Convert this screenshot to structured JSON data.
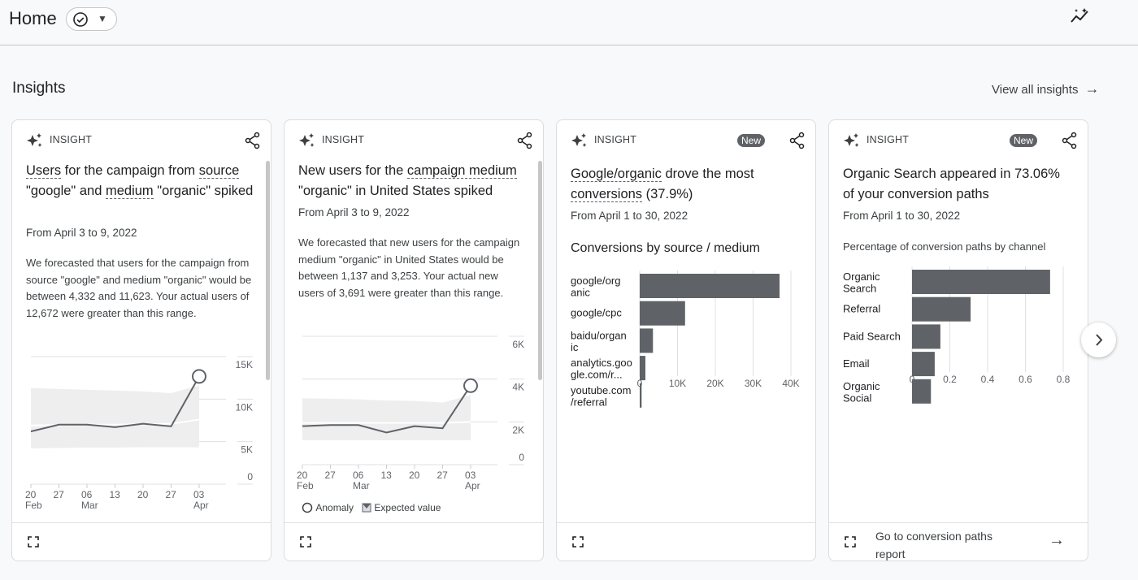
{
  "header": {
    "title": "Home",
    "status_icon": "check-circle-icon",
    "dropdown_icon": "caret-down-icon",
    "right_icon": "insights-sparkline-icon"
  },
  "insights": {
    "title": "Insights",
    "view_all": "View all insights",
    "view_all_icon": "arrow-right-icon"
  },
  "cards": [
    {
      "label": "INSIGHT",
      "title": [
        {
          "t": "Users",
          "u": true
        },
        {
          "t": " for the campaign from "
        },
        {
          "t": "source",
          "u": true
        },
        {
          "t": " \"google\" and "
        },
        {
          "t": "medium",
          "u": true
        },
        {
          "t": " \"organic\" spiked"
        }
      ],
      "date": "From April 3 to 9, 2022",
      "description": "We forecasted that users for the campaign from source \"google\" and medium \"organic\" would be between 4,332 and 11,623. Your actual users of 12,672 were greater than this range."
    },
    {
      "label": "INSIGHT",
      "title": [
        {
          "t": "New users for the "
        },
        {
          "t": "campaign medium",
          "u": true
        },
        {
          "t": " \"organic\" in United States spiked"
        }
      ],
      "date": "From April 3 to 9, 2022",
      "description": "We forecasted that new users for the campaign medium \"organic\" in United States would be between 1,137 and 3,253. Your actual new users of 3,691 were greater than this range.",
      "legend": {
        "anomaly": "Anomaly",
        "expected": "Expected value"
      }
    },
    {
      "label": "INSIGHT",
      "badge": "New",
      "title": [
        {
          "t": "Google/organic",
          "u": true
        },
        {
          "t": " drove the most "
        },
        {
          "t": "conversions",
          "u": true
        },
        {
          "t": " (37.9%)"
        }
      ],
      "date": "From April 1 to 30, 2022",
      "subtitle": "Conversions by source / medium"
    },
    {
      "label": "INSIGHT",
      "badge": "New",
      "title": [
        {
          "t": "Organic Search appeared in 73.06% of your conversion paths"
        }
      ],
      "date": "From April 1 to 30, 2022",
      "subtitle": "Percentage of conversion paths by channel",
      "footer_link": "Go to conversion paths report"
    }
  ],
  "chart_data": [
    {
      "type": "line",
      "x": [
        "20 Feb",
        "27",
        "06 Mar",
        "13",
        "20",
        "27",
        "03 Apr"
      ],
      "x_ticks": [
        [
          "20",
          "Feb"
        ],
        [
          "27",
          ""
        ],
        [
          "06",
          "Mar"
        ],
        [
          "13",
          ""
        ],
        [
          "20",
          ""
        ],
        [
          "27",
          ""
        ],
        [
          "03",
          "Apr"
        ]
      ],
      "y_ticks": [
        "15K",
        "10K",
        "5K",
        "0"
      ],
      "ylim": [
        0,
        15000
      ],
      "series": [
        {
          "values": [
            6200,
            7000,
            7000,
            6700,
            7100,
            6800,
            12672
          ]
        }
      ],
      "expected_band": {
        "upper": [
          11300,
          11200,
          11100,
          11000,
          10900,
          10700,
          11623
        ],
        "lower": [
          4200,
          4250,
          4300,
          4300,
          4350,
          4350,
          4332
        ],
        "expected": [
          6900,
          6950,
          7000,
          7000,
          7050,
          7100,
          7600
        ]
      },
      "anomaly_index": 6
    },
    {
      "type": "line",
      "x": [
        "20 Feb",
        "27",
        "06 Mar",
        "13",
        "20",
        "27",
        "03 Apr"
      ],
      "x_ticks": [
        [
          "20",
          "Feb"
        ],
        [
          "27",
          ""
        ],
        [
          "06",
          "Mar"
        ],
        [
          "13",
          ""
        ],
        [
          "20",
          ""
        ],
        [
          "27",
          ""
        ],
        [
          "03",
          "Apr"
        ]
      ],
      "y_ticks": [
        "6K",
        "4K",
        "2K",
        "0"
      ],
      "ylim": [
        0,
        6000
      ],
      "series": [
        {
          "values": [
            1800,
            1850,
            1850,
            1500,
            1800,
            1700,
            3691
          ]
        }
      ],
      "expected_band": {
        "upper": [
          3100,
          3080,
          3050,
          3000,
          2980,
          2900,
          3253
        ],
        "lower": [
          1137,
          1137,
          1137,
          1137,
          1137,
          1137,
          1137
        ],
        "expected": [
          1950,
          1950,
          1950,
          1950,
          1950,
          1950,
          2000
        ]
      },
      "anomaly_index": 6
    },
    {
      "type": "bar",
      "orientation": "horizontal",
      "categories": [
        [
          "google/org",
          "anic"
        ],
        [
          "google/cpc"
        ],
        [
          "baidu/organ",
          "ic"
        ],
        [
          "analytics.goo",
          "gle.com/r..."
        ],
        [
          "youtube.com",
          "/referral"
        ]
      ],
      "values": [
        37000,
        12000,
        3500,
        1500,
        500
      ],
      "x_ticks": [
        "0",
        "10K",
        "20K",
        "30K",
        "40K"
      ],
      "xlim": [
        0,
        40000
      ],
      "color": "#5f6368"
    },
    {
      "type": "bar",
      "orientation": "horizontal",
      "categories": [
        [
          "Organic",
          "Search"
        ],
        [
          "Referral"
        ],
        [
          "Paid Search"
        ],
        [
          "Email"
        ],
        [
          "Organic",
          "Social"
        ]
      ],
      "values": [
        0.7306,
        0.31,
        0.15,
        0.12,
        0.1
      ],
      "x_ticks": [
        "0",
        "0.2",
        "0.4",
        "0.6",
        "0.8"
      ],
      "xlim": [
        0,
        0.8
      ],
      "color": "#5f6368"
    }
  ]
}
